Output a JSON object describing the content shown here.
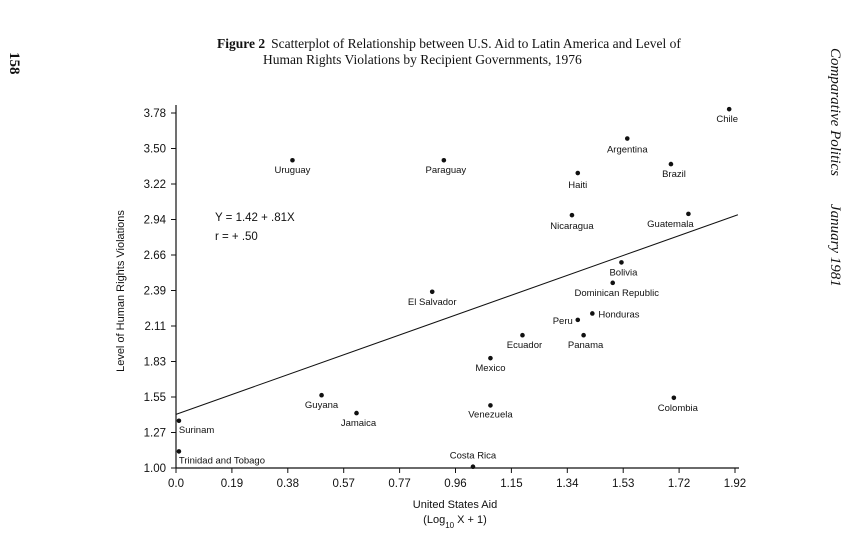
{
  "page_number": "158",
  "journal": {
    "name": "Comparative Politics",
    "date": "January 1981"
  },
  "caption": {
    "label": "Figure 2",
    "line1": "Scatterplot of Relationship between U.S. Aid to Latin America and Level of",
    "line2": "Human Rights Violations by Recipient Governments, 1976"
  },
  "chart_data": {
    "type": "scatter",
    "xlabel_line1": "United States Aid",
    "xlabel_line2": "(Log10 X + 1)",
    "ylabel": "Level of Human Rights Violations",
    "xlim": [
      0.0,
      1.92
    ],
    "ylim": [
      1.0,
      3.78
    ],
    "x_ticks": [
      "0.0",
      "0.19",
      "0.38",
      "0.57",
      "0.77",
      "0.96",
      "1.15",
      "1.34",
      "1.53",
      "1.72",
      "1.92"
    ],
    "y_ticks": [
      "3.78",
      "3.50",
      "3.22",
      "2.94",
      "2.66",
      "2.39",
      "2.11",
      "1.83",
      "1.55",
      "1.27",
      "1.00"
    ],
    "equation": "Y = 1.42 + .81X",
    "correlation": "r = + .50",
    "regression": {
      "intercept": 1.42,
      "slope": 0.81
    },
    "points": [
      {
        "name": "Chile",
        "x": 1.9,
        "y": 3.81
      },
      {
        "name": "Argentina",
        "x": 1.55,
        "y": 3.58
      },
      {
        "name": "Brazil",
        "x": 1.7,
        "y": 3.38
      },
      {
        "name": "Haiti",
        "x": 1.38,
        "y": 3.31
      },
      {
        "name": "Uruguay",
        "x": 0.4,
        "y": 3.41
      },
      {
        "name": "Paraguay",
        "x": 0.92,
        "y": 3.41
      },
      {
        "name": "Nicaragua",
        "x": 1.36,
        "y": 2.98
      },
      {
        "name": "Guatemala",
        "x": 1.76,
        "y": 2.99
      },
      {
        "name": "Bolivia",
        "x": 1.53,
        "y": 2.61
      },
      {
        "name": "Dominican Republic",
        "x": 1.5,
        "y": 2.45
      },
      {
        "name": "El Salvador",
        "x": 0.88,
        "y": 2.38
      },
      {
        "name": "Honduras",
        "x": 1.43,
        "y": 2.21
      },
      {
        "name": "Peru",
        "x": 1.38,
        "y": 2.16
      },
      {
        "name": "Panama",
        "x": 1.4,
        "y": 2.04
      },
      {
        "name": "Ecuador",
        "x": 1.19,
        "y": 2.04
      },
      {
        "name": "Mexico",
        "x": 1.08,
        "y": 1.86
      },
      {
        "name": "Guyana",
        "x": 0.5,
        "y": 1.57
      },
      {
        "name": "Jamaica",
        "x": 0.62,
        "y": 1.43
      },
      {
        "name": "Venezuela",
        "x": 1.08,
        "y": 1.49
      },
      {
        "name": "Colombia",
        "x": 1.71,
        "y": 1.55
      },
      {
        "name": "Surinam",
        "x": 0.01,
        "y": 1.37
      },
      {
        "name": "Trinidad and Tobago",
        "x": 0.01,
        "y": 1.13
      },
      {
        "name": "Costa Rica",
        "x": 1.02,
        "y": 1.01
      }
    ]
  }
}
